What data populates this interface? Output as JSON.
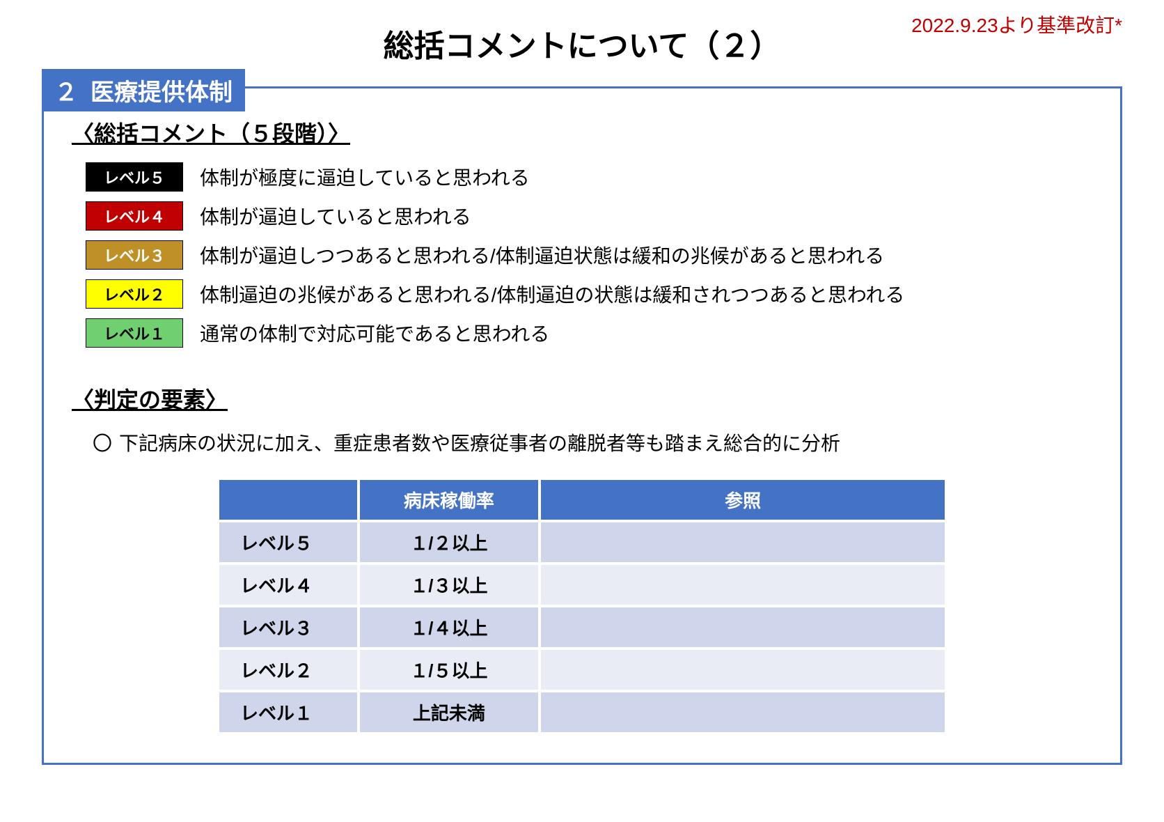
{
  "header": {
    "title": "総括コメントについて（２）",
    "revision": "2022.9.23より基準改訂*"
  },
  "section": {
    "number": "２",
    "title": "医療提供体制"
  },
  "levels": {
    "heading": "〈総括コメント（５段階）〉",
    "rows": [
      {
        "label": "レベル５",
        "bg": "#000000",
        "fg": "#ffffff",
        "desc": "体制が極度に逼迫していると思われる"
      },
      {
        "label": "レベル４",
        "bg": "#c00000",
        "fg": "#ffffff",
        "desc": "体制が逼迫していると思われる"
      },
      {
        "label": "レベル３",
        "bg": "#c09028",
        "fg": "#ffffff",
        "desc": "体制が逼迫しつつあると思われる/体制逼迫状態は緩和の兆候があると思われる"
      },
      {
        "label": "レベル２",
        "bg": "#ffff00",
        "fg": "#000000",
        "desc": "体制逼迫の兆候があると思われる/体制逼迫の状態は緩和されつつあると思われる"
      },
      {
        "label": "レベル１",
        "bg": "#70d070",
        "fg": "#000000",
        "desc": "通常の体制で対応可能であると思われる"
      }
    ]
  },
  "criteria": {
    "heading": "〈判定の要素〉",
    "note_bullet": "〇",
    "note": "下記病床の状況に加え、重症患者数や医療従事者の離脱者等も踏まえ総合的に分析",
    "table": {
      "header_bg": "#4472c4",
      "header_fg": "#ffffff",
      "row_odd_bg": "#cfd5ea",
      "row_even_bg": "#e9ebf5",
      "col_widths": [
        "200px",
        "260px",
        "590px"
      ],
      "columns": [
        "",
        "病床稼働率",
        "参照"
      ],
      "rows": [
        [
          "レベル５",
          "１/２以上",
          ""
        ],
        [
          "レベル４",
          "１/３以上",
          ""
        ],
        [
          "レベル３",
          "１/４以上",
          ""
        ],
        [
          "レベル２",
          "１/５以上",
          ""
        ],
        [
          "レベル１",
          "上記未満",
          ""
        ]
      ]
    }
  }
}
